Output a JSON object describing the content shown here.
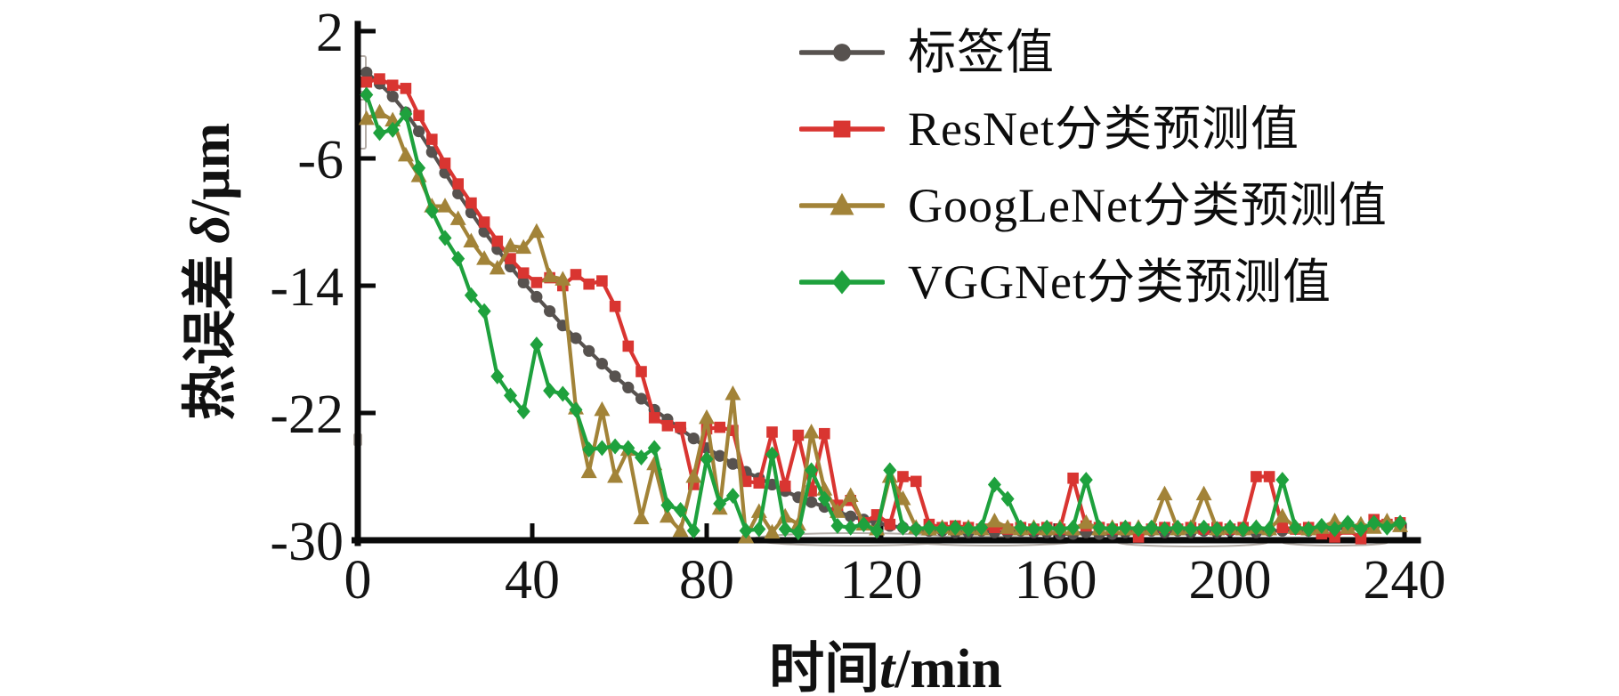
{
  "axes": {
    "x_title": {
      "cn": "时间",
      "var": "t",
      "unit": "/min"
    },
    "y_title": {
      "cn": "热误差",
      "var": "δ",
      "unit": "/μm"
    }
  },
  "legend": {
    "items": [
      {
        "label": "标签值",
        "color": "#57524f",
        "marker": "circle"
      },
      {
        "label": "ResNet分类预测值",
        "color": "#d93531",
        "marker": "square"
      },
      {
        "label": "GoogLeNet分类预测值",
        "color": "#a28338",
        "marker": "triangle"
      },
      {
        "label": "VGGNet分类预测值",
        "color": "#1ea13d",
        "marker": "diamond"
      }
    ]
  },
  "chart_data": {
    "type": "line",
    "title": "",
    "xlabel": "时间 t/min",
    "ylabel": "热误差 δ/μm",
    "xlim": [
      0,
      240
    ],
    "ylim": [
      -30,
      2
    ],
    "x_ticks": [
      0,
      40,
      80,
      120,
      160,
      200,
      240
    ],
    "y_ticks": [
      2,
      -6,
      -14,
      -22,
      -30
    ],
    "grid": false,
    "legend_position": "upper right",
    "x": [
      2,
      5,
      8,
      11,
      14,
      17,
      20,
      23,
      26,
      29,
      32,
      35,
      38,
      41,
      44,
      47,
      50,
      53,
      56,
      59,
      62,
      65,
      68,
      71,
      74,
      77,
      80,
      83,
      86,
      89,
      92,
      95,
      98,
      101,
      104,
      107,
      110,
      113,
      116,
      119,
      122,
      125,
      128,
      131,
      134,
      137,
      140,
      143,
      146,
      149,
      152,
      155,
      158,
      161,
      164,
      167,
      170,
      173,
      176,
      179,
      182,
      185,
      188,
      191,
      194,
      197,
      200,
      203,
      206,
      209,
      212,
      215,
      218,
      221,
      224,
      227,
      230,
      233,
      236,
      239
    ],
    "series": [
      {
        "id": "label",
        "name": "标签值",
        "color": "#57524f",
        "marker": "circle",
        "values": [
          -0.6,
          -1.3,
          -2.1,
          -3.1,
          -4.3,
          -5.6,
          -6.9,
          -8.2,
          -9.4,
          -10.6,
          -11.7,
          -12.8,
          -13.8,
          -14.7,
          -15.6,
          -16.5,
          -17.3,
          -18.1,
          -18.9,
          -19.7,
          -20.4,
          -21.1,
          -21.8,
          -22.4,
          -23.0,
          -23.6,
          -24.2,
          -24.7,
          -25.2,
          -25.7,
          -26.1,
          -26.5,
          -26.9,
          -27.3,
          -27.6,
          -27.9,
          -28.2,
          -28.5,
          -28.7,
          -28.9,
          -29.1,
          -29.2,
          -29.3,
          -29.4,
          -29.4,
          -29.5,
          -29.5,
          -29.4,
          -29.5,
          -29.5,
          -29.4,
          -29.5,
          -29.5,
          -29.6,
          -29.6,
          -29.5,
          -29.6,
          -29.6,
          -29.5,
          -29.5,
          -29.4,
          -29.5,
          -29.4,
          -29.5,
          -29.4,
          -29.5,
          -29.4,
          -29.4,
          -29.5,
          -29.4,
          -29.4,
          -29.3,
          -29.4,
          -29.3,
          -29.3,
          -29.2,
          -29.2,
          -29.1,
          -29.0,
          -29.0
        ]
      },
      {
        "id": "resnet",
        "name": "ResNet分类预测值",
        "color": "#d93531",
        "marker": "square",
        "values": [
          -1.2,
          -1.0,
          -1.4,
          -1.6,
          -3.3,
          -4.8,
          -6.3,
          -7.6,
          -8.8,
          -10.0,
          -11.2,
          -12.3,
          -13.2,
          -13.8,
          -13.5,
          -14.0,
          -13.3,
          -13.9,
          -13.7,
          -15.3,
          -17.8,
          -19.4,
          -22.3,
          -22.8,
          -22.9,
          -26.5,
          -23.0,
          -22.9,
          -23.1,
          -26.3,
          -26.4,
          -23.2,
          -26.6,
          -23.4,
          -26.9,
          -23.3,
          -27.8,
          -27.5,
          -28.9,
          -28.4,
          -29.0,
          -26.0,
          -26.3,
          -29.0,
          -29.2,
          -29.1,
          -29.2,
          -29.3,
          -29.2,
          -29.3,
          -29.2,
          -29.3,
          -29.2,
          -29.3,
          -26.1,
          -29.1,
          -29.2,
          -29.3,
          -29.2,
          -29.8,
          -29.3,
          -29.2,
          -29.3,
          -29.2,
          -29.3,
          -29.2,
          -29.3,
          -29.2,
          -26.0,
          -26.0,
          -29.2,
          -29.3,
          -29.2,
          -29.6,
          -29.8,
          -29.3,
          -29.9,
          -28.7,
          -29.0,
          -28.9
        ]
      },
      {
        "id": "googlenet",
        "name": "GoogLeNet分类预测值",
        "color": "#a28338",
        "marker": "triangle",
        "values": [
          -3.5,
          -3.1,
          -3.6,
          -5.8,
          -7.1,
          -9.0,
          -9.0,
          -9.8,
          -11.2,
          -12.3,
          -12.9,
          -11.5,
          -11.6,
          -10.6,
          -13.4,
          -13.6,
          -21.7,
          -25.7,
          -21.8,
          -26.0,
          -24.3,
          -28.6,
          -25.2,
          -28.5,
          -29.4,
          -26.0,
          -22.3,
          -28.0,
          -20.8,
          -29.8,
          -28.2,
          -29.5,
          -28.5,
          -29.0,
          -23.2,
          -26.8,
          -28.2,
          -27.2,
          -29.0,
          -29.3,
          -26.0,
          -27.4,
          -29.2,
          -29.3,
          -29.2,
          -29.3,
          -29.2,
          -29.3,
          -28.8,
          -29.2,
          -29.3,
          -29.2,
          -29.3,
          -29.2,
          -29.3,
          -28.9,
          -29.3,
          -29.2,
          -29.3,
          -29.2,
          -29.3,
          -27.1,
          -29.3,
          -29.2,
          -27.1,
          -29.3,
          -29.2,
          -29.3,
          -29.2,
          -29.3,
          -28.5,
          -29.2,
          -29.3,
          -29.2,
          -28.8,
          -29.2,
          -29.0,
          -29.2,
          -28.8,
          -29.1
        ]
      },
      {
        "id": "vggnet",
        "name": "VGGNet分类预测值",
        "color": "#1ea13d",
        "marker": "diamond",
        "values": [
          -2.0,
          -4.4,
          -4.2,
          -3.2,
          -6.6,
          -9.3,
          -11.0,
          -12.3,
          -14.6,
          -15.6,
          -19.7,
          -20.9,
          -21.9,
          -17.7,
          -20.6,
          -20.8,
          -21.8,
          -24.3,
          -24.2,
          -24.1,
          -24.2,
          -24.8,
          -24.2,
          -27.8,
          -28.1,
          -29.4,
          -24.9,
          -27.7,
          -27.2,
          -29.4,
          -29.3,
          -24.6,
          -29.3,
          -29.5,
          -25.6,
          -27.4,
          -29.1,
          -29.2,
          -29.0,
          -29.4,
          -25.6,
          -29.2,
          -29.3,
          -29.2,
          -29.3,
          -29.2,
          -29.3,
          -29.2,
          -26.5,
          -27.4,
          -29.2,
          -29.3,
          -29.2,
          -29.3,
          -29.2,
          -26.2,
          -29.2,
          -29.3,
          -29.2,
          -29.3,
          -29.2,
          -29.3,
          -29.2,
          -29.3,
          -29.2,
          -29.3,
          -29.2,
          -29.3,
          -29.2,
          -29.3,
          -26.2,
          -29.2,
          -29.3,
          -29.1,
          -29.3,
          -28.9,
          -29.3,
          -28.9,
          -29.2,
          -28.9
        ]
      }
    ]
  }
}
